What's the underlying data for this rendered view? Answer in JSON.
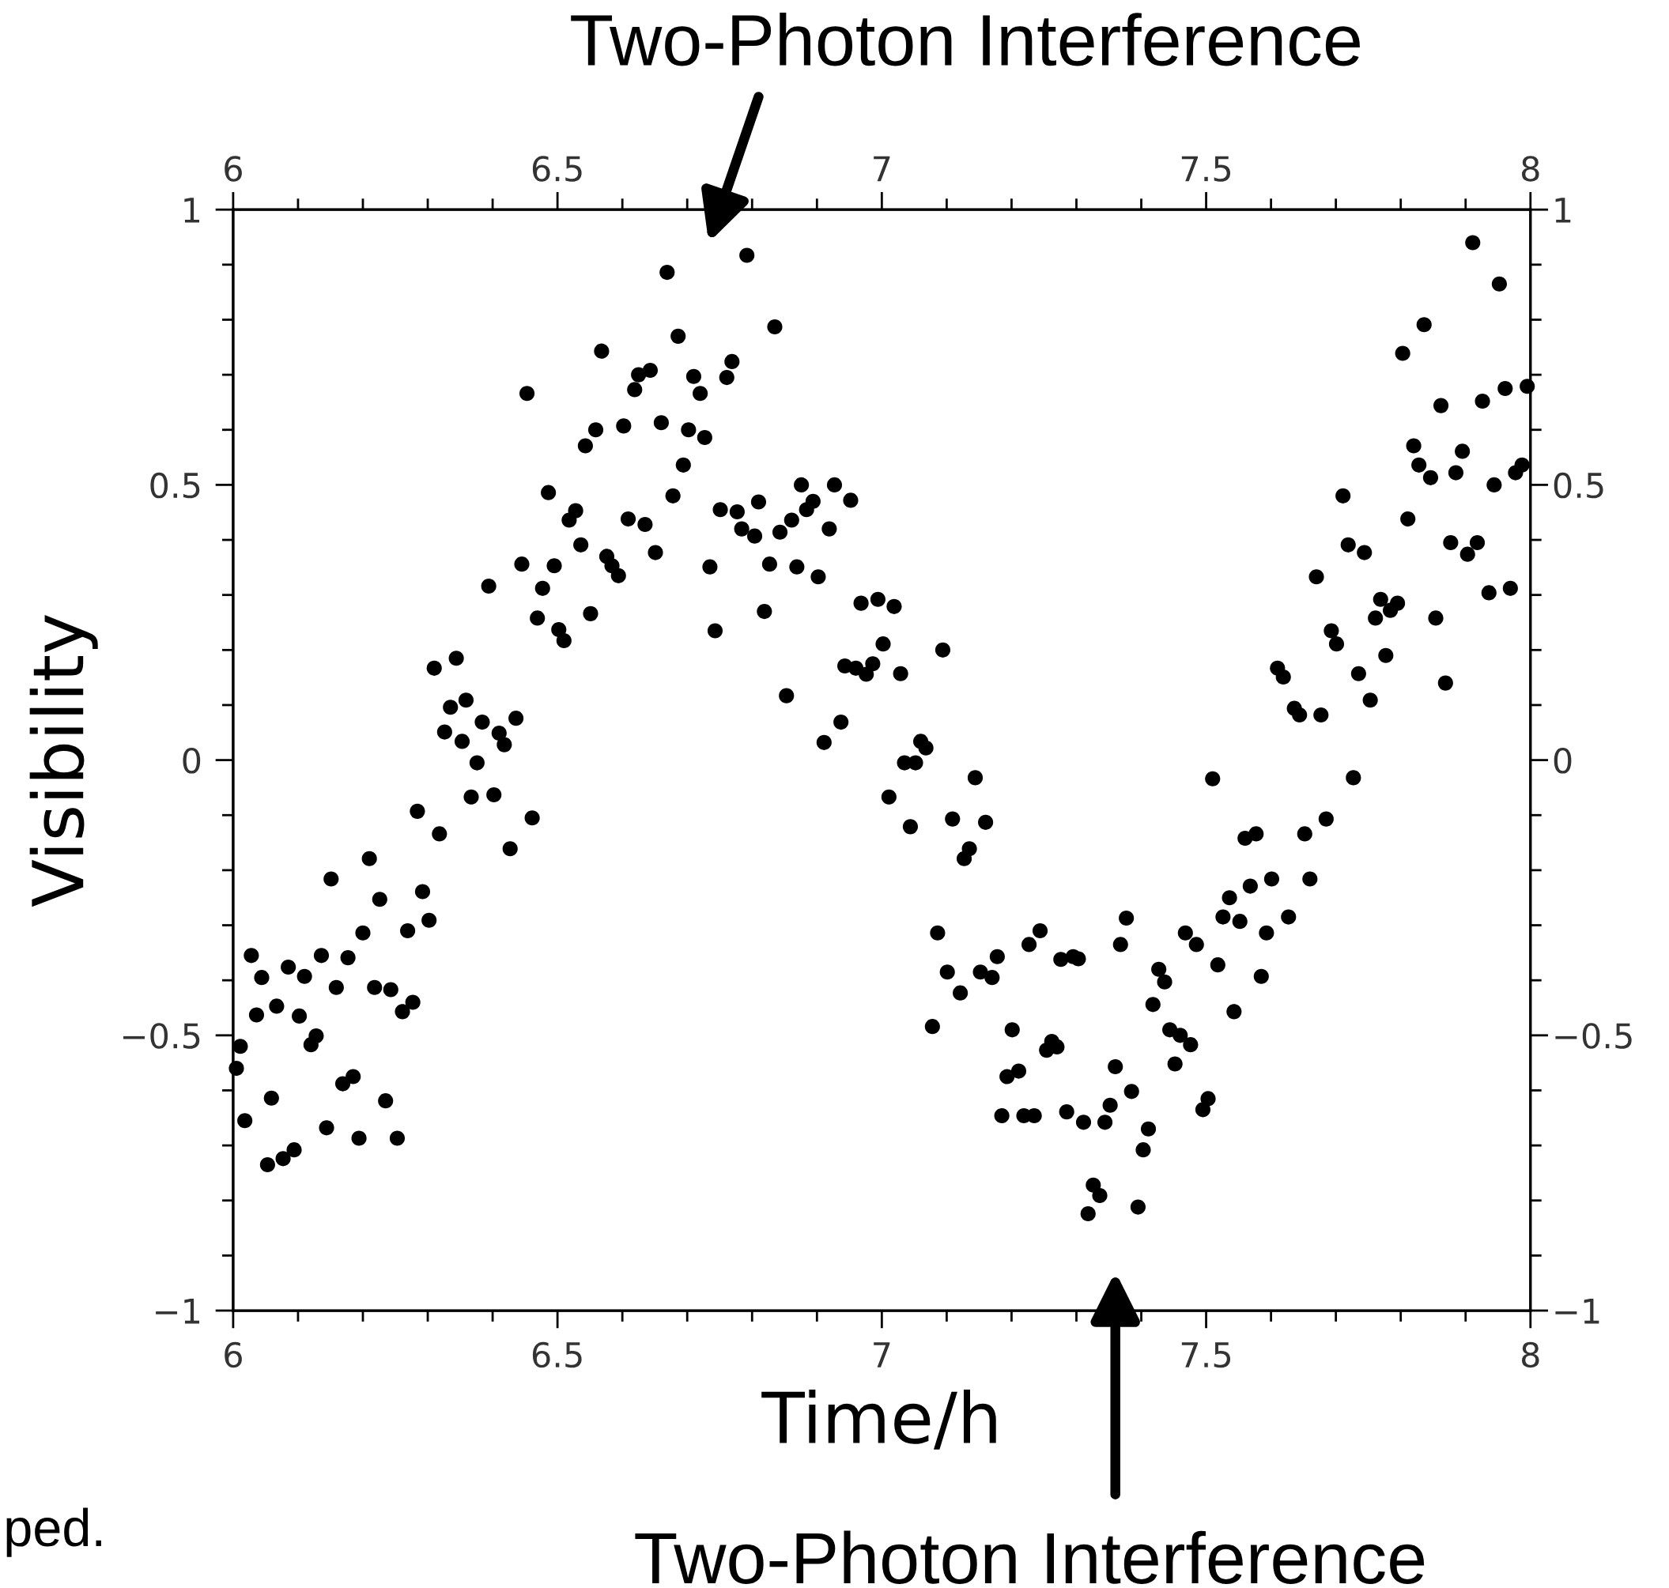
{
  "chart_data": {
    "type": "scatter",
    "xlabel": "Time/h",
    "ylabel": "Visibility",
    "marker": "circle",
    "grid": false,
    "legend": false,
    "xlim": [
      6,
      8
    ],
    "ylim": [
      -1,
      1
    ],
    "x2lim": [
      6,
      8
    ],
    "y2lim": [
      -1,
      1
    ],
    "xticks": [
      6,
      {
        "value": 6.1,
        "label": null
      },
      {
        "value": 6.2,
        "label": null
      },
      {
        "value": 6.3,
        "label": null
      },
      {
        "value": 6.4,
        "label": null
      },
      6.5,
      {
        "value": 6.6,
        "label": null
      },
      {
        "value": 6.7,
        "label": null
      },
      {
        "value": 6.8,
        "label": null
      },
      {
        "value": 6.9,
        "label": null
      },
      7,
      {
        "value": 7.1,
        "label": null
      },
      {
        "value": 7.2,
        "label": null
      },
      {
        "value": 7.3,
        "label": null
      },
      {
        "value": 7.4,
        "label": null
      },
      7.5,
      {
        "value": 7.6,
        "label": null
      },
      {
        "value": 7.7,
        "label": null
      },
      {
        "value": 7.8,
        "label": null
      },
      {
        "value": 7.9,
        "label": null
      },
      8
    ],
    "x2ticks": [
      6,
      {
        "value": 6.1,
        "label": null
      },
      {
        "value": 6.2,
        "label": null
      },
      {
        "value": 6.3,
        "label": null
      },
      {
        "value": 6.4,
        "label": null
      },
      6.5,
      {
        "value": 6.6,
        "label": null
      },
      {
        "value": 6.7,
        "label": null
      },
      {
        "value": 6.8,
        "label": null
      },
      {
        "value": 6.9,
        "label": null
      },
      7,
      {
        "value": 7.1,
        "label": null
      },
      {
        "value": 7.2,
        "label": null
      },
      {
        "value": 7.3,
        "label": null
      },
      {
        "value": 7.4,
        "label": null
      },
      7.5,
      {
        "value": 7.6,
        "label": null
      },
      {
        "value": 7.7,
        "label": null
      },
      {
        "value": 7.8,
        "label": null
      },
      {
        "value": 7.9,
        "label": null
      },
      8
    ],
    "yticks": [
      {
        "value": -1,
        "label": "−1"
      },
      {
        "value": -0.9,
        "label": null
      },
      {
        "value": -0.8,
        "label": null
      },
      {
        "value": -0.7,
        "label": null
      },
      {
        "value": -0.6,
        "label": null
      },
      {
        "value": -0.5,
        "label": "−0.5"
      },
      {
        "value": -0.4,
        "label": null
      },
      {
        "value": -0.3,
        "label": null
      },
      {
        "value": -0.2,
        "label": null
      },
      {
        "value": -0.1,
        "label": null
      },
      0,
      {
        "value": 0.1,
        "label": null
      },
      {
        "value": 0.2,
        "label": null
      },
      {
        "value": 0.3,
        "label": null
      },
      {
        "value": 0.4,
        "label": null
      },
      0.5,
      {
        "value": 0.6,
        "label": null
      },
      {
        "value": 0.7,
        "label": null
      },
      {
        "value": 0.8,
        "label": null
      },
      {
        "value": 0.9,
        "label": null
      },
      1
    ],
    "y2ticks": [
      {
        "value": -1,
        "label": "−1"
      },
      {
        "value": -0.9,
        "label": null
      },
      {
        "value": -0.8,
        "label": null
      },
      {
        "value": -0.7,
        "label": null
      },
      {
        "value": -0.6,
        "label": null
      },
      {
        "value": -0.5,
        "label": "−0.5"
      },
      {
        "value": -0.4,
        "label": null
      },
      {
        "value": -0.3,
        "label": null
      },
      {
        "value": -0.2,
        "label": null
      },
      {
        "value": -0.1,
        "label": null
      },
      0,
      {
        "value": 0.1,
        "label": null
      },
      {
        "value": 0.2,
        "label": null
      },
      {
        "value": 0.3,
        "label": null
      },
      {
        "value": 0.4,
        "label": null
      },
      0.5,
      {
        "value": 0.6,
        "label": null
      },
      {
        "value": 0.7,
        "label": null
      },
      {
        "value": 0.8,
        "label": null
      },
      {
        "value": 0.9,
        "label": null
      },
      1
    ],
    "annotations": [
      "Two-Photon Interference",
      "Two-Photon Interference",
      "ped."
    ],
    "series": [
      {
        "color": "#000000",
        "x": [
          6.005,
          6.011,
          6.018,
          6.028,
          6.036,
          6.044,
          6.053,
          6.059,
          6.067,
          6.077,
          6.085,
          6.094,
          6.102,
          6.11,
          6.12,
          6.128,
          6.136,
          6.144,
          6.151,
          6.159,
          6.169,
          6.177,
          6.185,
          6.194,
          6.2,
          6.21,
          6.218,
          6.226,
          6.235,
          6.243,
          6.253,
          6.261,
          6.269,
          6.277,
          6.284,
          6.292,
          6.302,
          6.31,
          6.318,
          6.326,
          6.335,
          6.344,
          6.353,
          6.359,
          6.367,
          6.376,
          6.384,
          6.394,
          6.402,
          6.41,
          6.418,
          6.427,
          6.436,
          6.445,
          6.453,
          6.461,
          6.469,
          6.477,
          6.486,
          6.495,
          6.502,
          6.51,
          6.518,
          6.528,
          6.536,
          6.543,
          6.551,
          6.559,
          6.568,
          6.576,
          6.584,
          6.594,
          6.602,
          6.609,
          6.619,
          6.625,
          6.635,
          6.643,
          6.651,
          6.66,
          6.669,
          6.678,
          6.686,
          6.694,
          6.702,
          6.71,
          6.72,
          6.727,
          6.735,
          6.743,
          6.751,
          6.761,
          6.769,
          6.777,
          6.784,
          6.792,
          6.804,
          6.81,
          6.819,
          6.827,
          6.835,
          6.843,
          6.853,
          6.861,
          6.869,
          6.876,
          6.884,
          6.894,
          6.902,
          6.911,
          6.919,
          6.927,
          6.937,
          6.943,
          6.952,
          6.96,
          6.968,
          6.976,
          6.986,
          6.994,
          7.002,
          7.011,
          7.019,
          7.029,
          7.035,
          7.044,
          7.052,
          7.06,
          7.068,
          7.078,
          7.086,
          7.094,
          7.101,
          7.109,
          7.121,
          7.127,
          7.135,
          7.144,
          7.152,
          7.16,
          7.17,
          7.178,
          7.185,
          7.193,
          7.201,
          7.211,
          7.219,
          7.227,
          7.235,
          7.244,
          7.254,
          7.262,
          7.27,
          7.276,
          7.285,
          7.295,
          7.303,
          7.311,
          7.318,
          7.326,
          7.336,
          7.344,
          7.352,
          7.36,
          7.368,
          7.377,
          7.385,
          7.395,
          7.403,
          7.411,
          7.418,
          7.427,
          7.436,
          7.444,
          7.452,
          7.46,
          7.468,
          7.476,
          7.485,
          7.495,
          7.503,
          7.51,
          7.518,
          7.526,
          7.536,
          7.543,
          7.552,
          7.56,
          7.568,
          7.577,
          7.585,
          7.593,
          7.601,
          7.61,
          7.619,
          7.627,
          7.636,
          7.644,
          7.652,
          7.66,
          7.67,
          7.677,
          7.685,
          7.693,
          7.701,
          7.711,
          7.719,
          7.727,
          7.735,
          7.744,
          7.753,
          7.761,
          7.769,
          7.777,
          7.784,
          7.795,
          7.803,
          7.811,
          7.82,
          7.828,
          7.836,
          7.846,
          7.854,
          7.862,
          7.869,
          7.877,
          7.885,
          7.895,
          7.903,
          7.911,
          7.918,
          7.926,
          7.936,
          7.944,
          7.952,
          7.961,
          7.969,
          7.977,
          7.987,
          7.995
        ],
        "values": [
          -0.56,
          -0.52,
          -0.655,
          -0.355,
          -0.463,
          -0.395,
          -0.735,
          -0.614,
          -0.447,
          -0.724,
          -0.376,
          -0.708,
          -0.465,
          -0.393,
          -0.517,
          -0.501,
          -0.355,
          -0.668,
          -0.216,
          -0.413,
          -0.588,
          -0.359,
          -0.575,
          -0.687,
          -0.314,
          -0.179,
          -0.413,
          -0.253,
          -0.619,
          -0.417,
          -0.687,
          -0.457,
          -0.31,
          -0.44,
          -0.093,
          -0.239,
          -0.291,
          0.167,
          -0.134,
          0.051,
          0.096,
          0.185,
          0.034,
          0.109,
          -0.067,
          -0.005,
          0.069,
          0.316,
          -0.063,
          0.049,
          0.028,
          -0.161,
          0.076,
          0.356,
          0.666,
          -0.105,
          0.258,
          0.312,
          0.486,
          0.353,
          0.237,
          0.217,
          0.436,
          0.453,
          0.391,
          0.571,
          0.266,
          0.6,
          0.743,
          0.37,
          0.353,
          0.335,
          0.607,
          0.438,
          0.673,
          0.7,
          0.428,
          0.708,
          0.377,
          0.613,
          0.886,
          0.48,
          0.77,
          0.536,
          0.6,
          0.697,
          0.666,
          0.586,
          0.351,
          0.235,
          0.455,
          0.695,
          0.724,
          0.451,
          0.42,
          0.917,
          0.407,
          0.469,
          0.27,
          0.356,
          0.787,
          0.414,
          0.117,
          0.436,
          0.351,
          0.5,
          0.455,
          0.47,
          0.333,
          0.032,
          0.42,
          0.5,
          0.069,
          0.171,
          0.472,
          0.167,
          0.285,
          0.156,
          0.175,
          0.292,
          0.211,
          -0.067,
          0.279,
          0.157,
          -0.005,
          -0.121,
          -0.005,
          0.034,
          0.022,
          -0.484,
          -0.314,
          0.2,
          -0.385,
          -0.107,
          -0.423,
          -0.179,
          -0.161,
          -0.032,
          -0.385,
          -0.113,
          -0.395,
          -0.357,
          -0.646,
          -0.575,
          -0.49,
          -0.565,
          -0.646,
          -0.335,
          -0.646,
          -0.31,
          -0.527,
          -0.511,
          -0.521,
          -0.362,
          -0.639,
          -0.357,
          -0.361,
          -0.658,
          -0.824,
          -0.772,
          -0.791,
          -0.658,
          -0.627,
          -0.557,
          -0.335,
          -0.287,
          -0.602,
          -0.812,
          -0.708,
          -0.67,
          -0.444,
          -0.38,
          -0.403,
          -0.49,
          -0.552,
          -0.5,
          -0.314,
          -0.517,
          -0.335,
          -0.635,
          -0.615,
          -0.034,
          -0.372,
          -0.285,
          -0.25,
          -0.457,
          -0.293,
          -0.142,
          -0.229,
          -0.134,
          -0.393,
          -0.314,
          -0.216,
          0.167,
          0.151,
          -0.285,
          0.094,
          0.082,
          -0.134,
          -0.216,
          0.333,
          0.082,
          -0.107,
          0.235,
          0.211,
          0.48,
          0.391,
          -0.032,
          0.157,
          0.377,
          0.109,
          0.258,
          0.292,
          0.19,
          0.272,
          0.285,
          0.739,
          0.438,
          0.571,
          0.536,
          0.791,
          0.513,
          0.258,
          0.644,
          0.14,
          0.395,
          0.522,
          0.561,
          0.374,
          0.94,
          0.395,
          0.652,
          0.304,
          0.5,
          0.865,
          0.675,
          0.312,
          0.522,
          0.536,
          0.679
        ]
      }
    ]
  }
}
